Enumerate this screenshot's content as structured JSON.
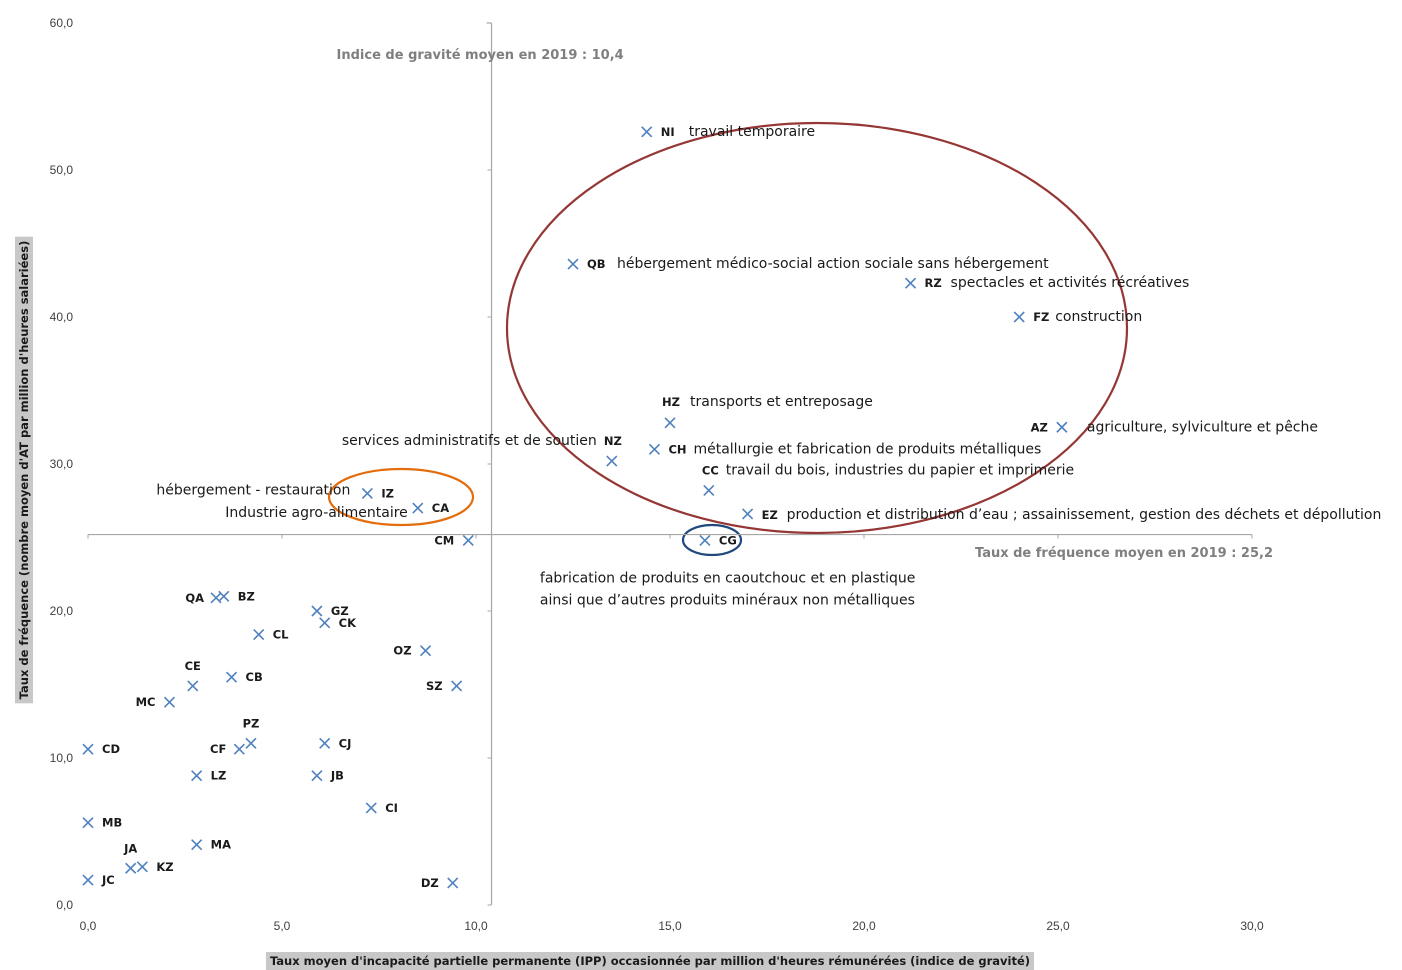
{
  "chart_data": {
    "type": "scatter",
    "xlabel": "Taux moyen d'incapacité partielle permanente (IPP) occasionnée par million d'heures rémunérées (indice de gravité)",
    "ylabel": "Taux de fréquence (nombre moyen d'AT par million d'heures salariées)",
    "xlim": [
      0,
      30
    ],
    "ylim": [
      0,
      60
    ],
    "x_ticks": [
      "0,0",
      "5,0",
      "10,0",
      "15,0",
      "20,0",
      "25,0",
      "30,0"
    ],
    "y_ticks": [
      "0,0",
      "10,0",
      "20,0",
      "30,0",
      "40,0",
      "50,0",
      "60,0"
    ],
    "grid": false,
    "marker": "x",
    "marker_color": "#4f81bd",
    "reference_lines": {
      "x": {
        "value": 10.4,
        "label": "Indice de gravité moyen en 2019 : 10,4"
      },
      "y": {
        "value": 25.2,
        "label": "Taux de fréquence moyen en 2019 : 25,2"
      }
    },
    "points": [
      {
        "code": "NI",
        "x": 14.4,
        "y": 52.6,
        "desc": "travail temporaire"
      },
      {
        "code": "QB",
        "x": 12.5,
        "y": 43.6,
        "desc": "hébergement médico-social action sociale sans hébergement"
      },
      {
        "code": "RZ",
        "x": 21.2,
        "y": 42.3,
        "desc": "spectacles et activités récréatives"
      },
      {
        "code": "FZ",
        "x": 24.0,
        "y": 40.0,
        "desc": "construction"
      },
      {
        "code": "HZ",
        "x": 15.0,
        "y": 32.8,
        "desc": "transports et entreposage"
      },
      {
        "code": "AZ",
        "x": 25.1,
        "y": 32.5,
        "desc": "agriculture, sylviculture et pêche"
      },
      {
        "code": "NZ",
        "x": 13.5,
        "y": 30.2,
        "desc": "services administratifs et de soutien"
      },
      {
        "code": "CH",
        "x": 14.6,
        "y": 31.0,
        "desc": "métallurgie et fabrication de produits métalliques"
      },
      {
        "code": "CC",
        "x": 16.0,
        "y": 28.2,
        "desc": "travail du bois, industries du papier et imprimerie"
      },
      {
        "code": "EZ",
        "x": 17.0,
        "y": 26.6,
        "desc": "production et distribution d’eau ; assainissement, gestion des déchets et dépollution"
      },
      {
        "code": "CG",
        "x": 15.9,
        "y": 24.8,
        "desc": "fabrication de produits en caoutchouc et en plastique",
        "desc2": "ainsi que d’autres produits minéraux non métalliques"
      },
      {
        "code": "IZ",
        "x": 7.2,
        "y": 28.0,
        "desc": "hébergement - restauration"
      },
      {
        "code": "CA",
        "x": 8.5,
        "y": 27.0,
        "desc": "Industrie agro-alimentaire"
      },
      {
        "code": "CM",
        "x": 9.8,
        "y": 24.8
      },
      {
        "code": "QA",
        "x": 3.3,
        "y": 20.9
      },
      {
        "code": "BZ",
        "x": 3.5,
        "y": 21.0
      },
      {
        "code": "GZ",
        "x": 5.9,
        "y": 20.0
      },
      {
        "code": "CK",
        "x": 6.1,
        "y": 19.2
      },
      {
        "code": "CL",
        "x": 4.4,
        "y": 18.4
      },
      {
        "code": "OZ",
        "x": 8.7,
        "y": 17.3
      },
      {
        "code": "CE",
        "x": 2.7,
        "y": 14.9
      },
      {
        "code": "CB",
        "x": 3.7,
        "y": 15.5
      },
      {
        "code": "SZ",
        "x": 9.5,
        "y": 14.9
      },
      {
        "code": "MC",
        "x": 2.1,
        "y": 13.8
      },
      {
        "code": "PZ",
        "x": 4.2,
        "y": 11.0
      },
      {
        "code": "CF",
        "x": 3.9,
        "y": 10.6
      },
      {
        "code": "CJ",
        "x": 6.1,
        "y": 11.0
      },
      {
        "code": "CD",
        "x": 0.0,
        "y": 10.6
      },
      {
        "code": "LZ",
        "x": 2.8,
        "y": 8.8
      },
      {
        "code": "JB",
        "x": 5.9,
        "y": 8.8
      },
      {
        "code": "CI",
        "x": 7.3,
        "y": 6.6
      },
      {
        "code": "MB",
        "x": 0.0,
        "y": 5.6
      },
      {
        "code": "MA",
        "x": 2.8,
        "y": 4.1
      },
      {
        "code": "JA",
        "x": 1.1,
        "y": 2.5
      },
      {
        "code": "KZ",
        "x": 1.4,
        "y": 2.6
      },
      {
        "code": "JC",
        "x": 0.0,
        "y": 1.7
      },
      {
        "code": "DZ",
        "x": 9.4,
        "y": 1.5
      }
    ],
    "highlight_ellipses": [
      {
        "color": "#953735",
        "group": [
          "NI",
          "QB",
          "RZ",
          "FZ",
          "HZ",
          "AZ",
          "NZ",
          "CH",
          "CC",
          "EZ"
        ]
      },
      {
        "color": "#e46c0a",
        "group": [
          "IZ",
          "CA"
        ]
      },
      {
        "color": "#1f497d",
        "group": [
          "CG"
        ]
      }
    ]
  }
}
